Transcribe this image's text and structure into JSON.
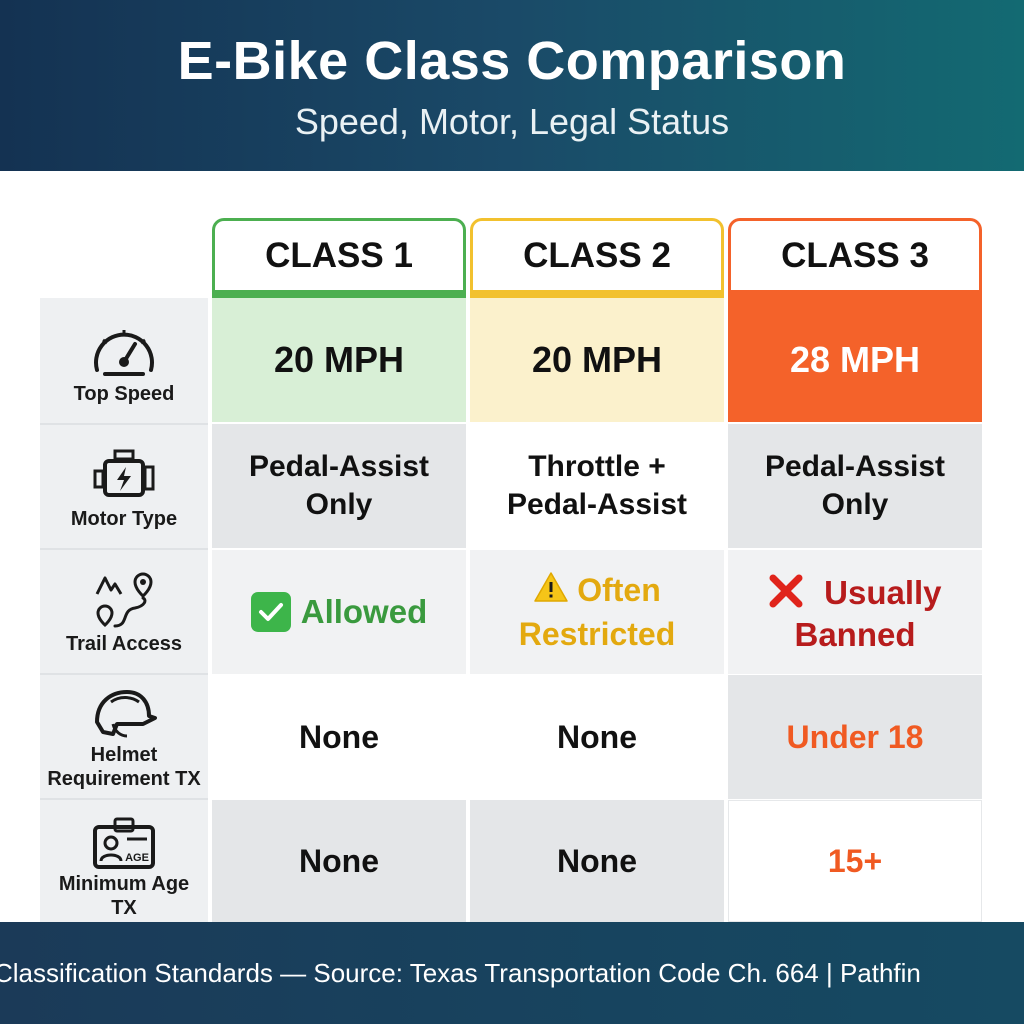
{
  "header": {
    "title": "E-Bike Class Comparison",
    "subtitle": "Speed, Motor, Legal Status"
  },
  "columns": [
    {
      "label": "CLASS 1",
      "accent": "#4caf50"
    },
    {
      "label": "CLASS 2",
      "accent": "#f2c12e"
    },
    {
      "label": "CLASS 3",
      "accent": "#f4622a"
    }
  ],
  "rows": [
    {
      "label": "Top Speed",
      "icon": "speedometer-icon",
      "values": [
        "20 MPH",
        "20 MPH",
        "28 MPH"
      ]
    },
    {
      "label": "Motor Type",
      "icon": "engine-icon",
      "values": [
        [
          "Pedal-Assist",
          "Only"
        ],
        [
          "Throttle +",
          "Pedal-Assist"
        ],
        [
          "Pedal-Assist",
          "Only"
        ]
      ]
    },
    {
      "label": "Trail Access",
      "icon": "trail-map-icon",
      "values": [
        [
          "Allowed"
        ],
        [
          "Often",
          "Restricted"
        ],
        [
          "Usually",
          "Banned"
        ]
      ]
    },
    {
      "label_lines": [
        "Helmet",
        "Requirement TX"
      ],
      "icon": "helmet-icon",
      "values": [
        "None",
        "None",
        "Under 18"
      ]
    },
    {
      "label_lines": [
        "Minimum Age",
        "TX"
      ],
      "icon": "age-id-icon",
      "icon_text": "AGE",
      "values": [
        "None",
        "None",
        "15+"
      ]
    }
  ],
  "footer": {
    "text": "Classification Standards — Source: Texas Transportation Code Ch. 664 | Pathfin"
  },
  "colors": {
    "class1_tint": "#d8efd6",
    "class2_tint": "#fbf1cc",
    "class3_fill": "#f4622a",
    "allowed_green": "#3a9a3e",
    "restricted_gold": "#e3a90f",
    "banned_red": "#b71c1c",
    "class3_text": "#f05a22",
    "row_gray": "#e4e6e8",
    "row_light": "#f1f2f3"
  }
}
